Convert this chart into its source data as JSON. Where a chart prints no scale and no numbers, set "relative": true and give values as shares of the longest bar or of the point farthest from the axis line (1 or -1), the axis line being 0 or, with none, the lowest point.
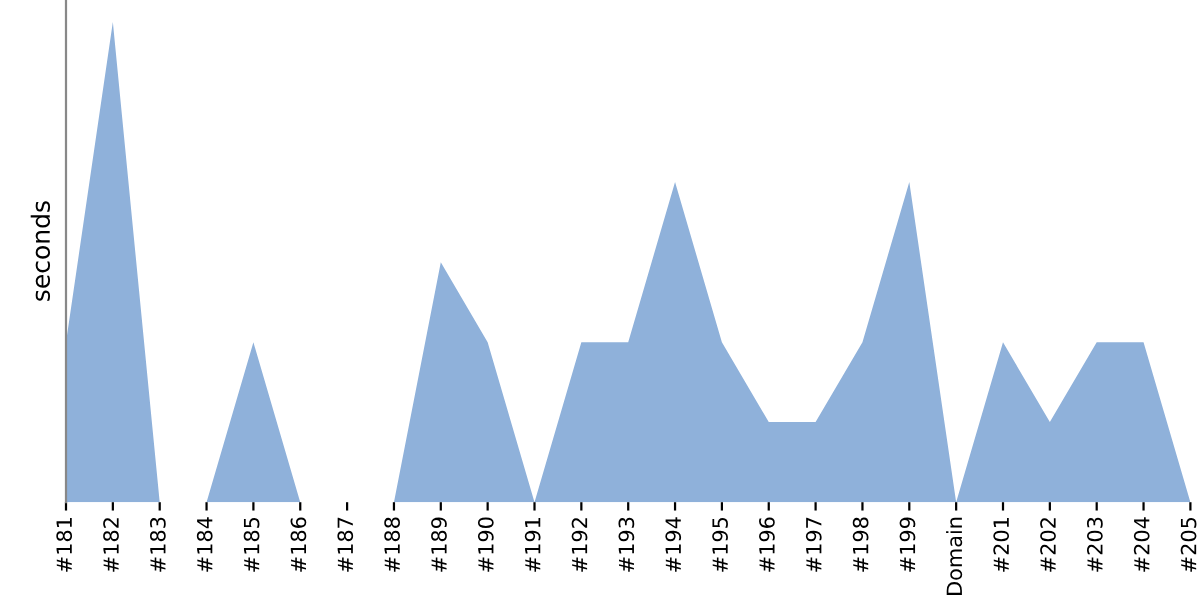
{
  "chart_data": {
    "type": "area",
    "ylabel": "seconds",
    "relative": true,
    "color": "#8fb1da",
    "categories": [
      "#181",
      "#182",
      "#183",
      "#184",
      "#185",
      "#186",
      "#187",
      "#188",
      "#189",
      "#190",
      "#191",
      "#192",
      "#193",
      "#194",
      "#195",
      "#196",
      "#197",
      "#198",
      "#199",
      "Domain",
      "#201",
      "#202",
      "#203",
      "#204",
      "#205"
    ],
    "values": [
      0.333,
      1,
      0,
      0,
      0.333,
      0,
      0,
      0,
      0.5,
      0.333,
      0,
      0.333,
      0.333,
      0.667,
      0.333,
      0.167,
      0.167,
      0.333,
      0.667,
      0,
      0.333,
      0.167,
      0.333,
      0.333,
      0
    ]
  }
}
